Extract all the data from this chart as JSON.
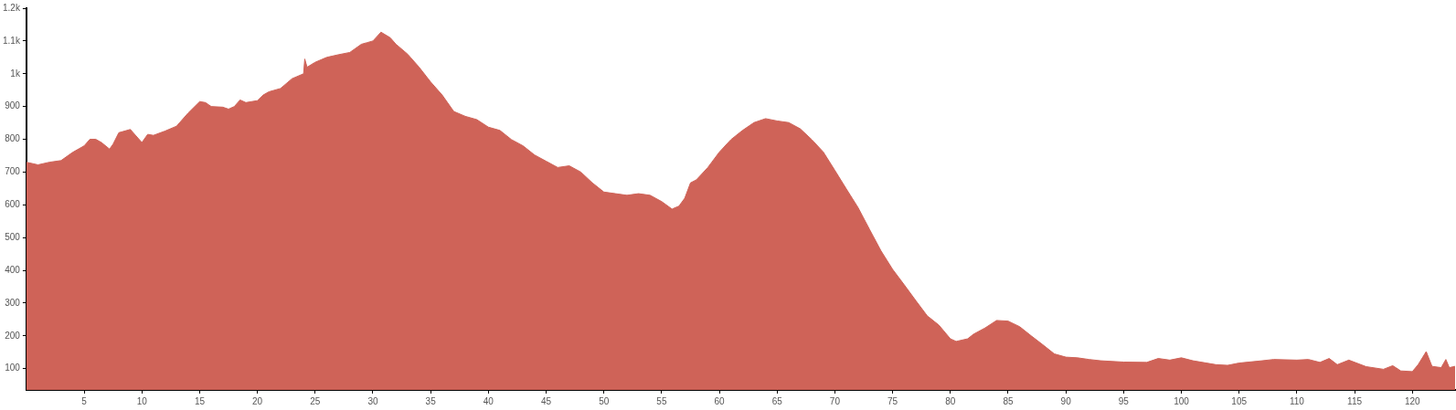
{
  "chart_data": {
    "type": "area",
    "x": [
      0,
      1,
      2,
      3,
      4,
      5,
      5.5,
      6,
      6.5,
      7.2,
      7.5,
      8,
      9,
      9.5,
      10,
      10.5,
      11,
      12,
      13,
      14,
      15,
      15.5,
      16,
      17,
      17.5,
      18,
      18.5,
      19,
      20,
      20.5,
      21,
      22,
      23,
      24,
      24.1,
      24.3,
      25,
      26,
      27,
      28,
      29,
      29.5,
      30,
      30.7,
      31.5,
      32,
      33,
      34,
      35,
      36,
      37,
      38,
      39,
      40,
      41,
      42,
      43,
      44,
      45,
      46,
      47,
      48,
      49,
      50,
      51,
      52,
      53,
      54,
      55,
      55.9,
      56.5,
      57,
      57.5,
      58,
      59,
      60,
      61,
      62,
      63,
      64,
      65,
      66,
      67,
      68,
      69,
      70,
      71,
      72,
      73,
      74,
      75,
      76,
      77,
      78,
      79,
      80,
      80.5,
      81.5,
      82,
      83,
      84,
      85,
      86,
      87,
      88,
      89,
      90,
      91,
      92,
      93,
      95,
      97,
      98,
      99,
      100,
      101,
      103,
      104,
      105,
      107,
      108,
      110,
      111,
      112,
      112.8,
      113.5,
      114.5,
      116,
      117.5,
      118.3,
      119,
      120,
      120.5,
      121.2,
      121.7,
      122.5,
      122.9,
      123.2,
      123.7
    ],
    "series": [
      {
        "color": "#cf6358",
        "values": [
          730,
          722,
          730,
          735,
          760,
          780,
          800,
          800,
          790,
          770,
          785,
          820,
          830,
          810,
          790,
          815,
          812,
          825,
          840,
          880,
          915,
          912,
          900,
          898,
          892,
          900,
          920,
          912,
          918,
          935,
          945,
          955,
          985,
          1000,
          1045,
          1020,
          1035,
          1050,
          1058,
          1065,
          1090,
          1095,
          1100,
          1127,
          1110,
          1090,
          1060,
          1020,
          975,
          935,
          885,
          870,
          860,
          837,
          827,
          799,
          780,
          752,
          733,
          714,
          719,
          700,
          667,
          639,
          634,
          629,
          634,
          629,
          610,
          587,
          596,
          620,
          667,
          676,
          714,
          761,
          799,
          827,
          851,
          863,
          856,
          851,
          832,
          799,
          761,
          705,
          648,
          592,
          525,
          459,
          403,
          356,
          308,
          261,
          233,
          191,
          183,
          191,
          205,
          224,
          247,
          245,
          228,
          200,
          173,
          145,
          135,
          133,
          128,
          124,
          120,
          119,
          131,
          126,
          133,
          124,
          112,
          110,
          117,
          124,
          128,
          126,
          128,
          119,
          131,
          112,
          126,
          106,
          98,
          109,
          93,
          91,
          112,
          152,
          107,
          103,
          128,
          103,
          107
        ]
      }
    ],
    "xlim": [
      0,
      123.7
    ],
    "ylim": [
      35,
      1200
    ],
    "xticks": [
      5,
      10,
      15,
      20,
      25,
      30,
      35,
      40,
      45,
      50,
      55,
      60,
      65,
      70,
      75,
      80,
      85,
      90,
      95,
      100,
      105,
      110,
      115,
      120
    ],
    "yticks": [
      100,
      200,
      300,
      400,
      500,
      600,
      700,
      800,
      900,
      {
        "value": 1000,
        "label": "1k"
      },
      {
        "value": 1100,
        "label": "1.1k"
      },
      {
        "value": 1200,
        "label": "1.2k"
      }
    ],
    "grid": false,
    "legend": false,
    "marker": "none",
    "line_style": "solid"
  }
}
